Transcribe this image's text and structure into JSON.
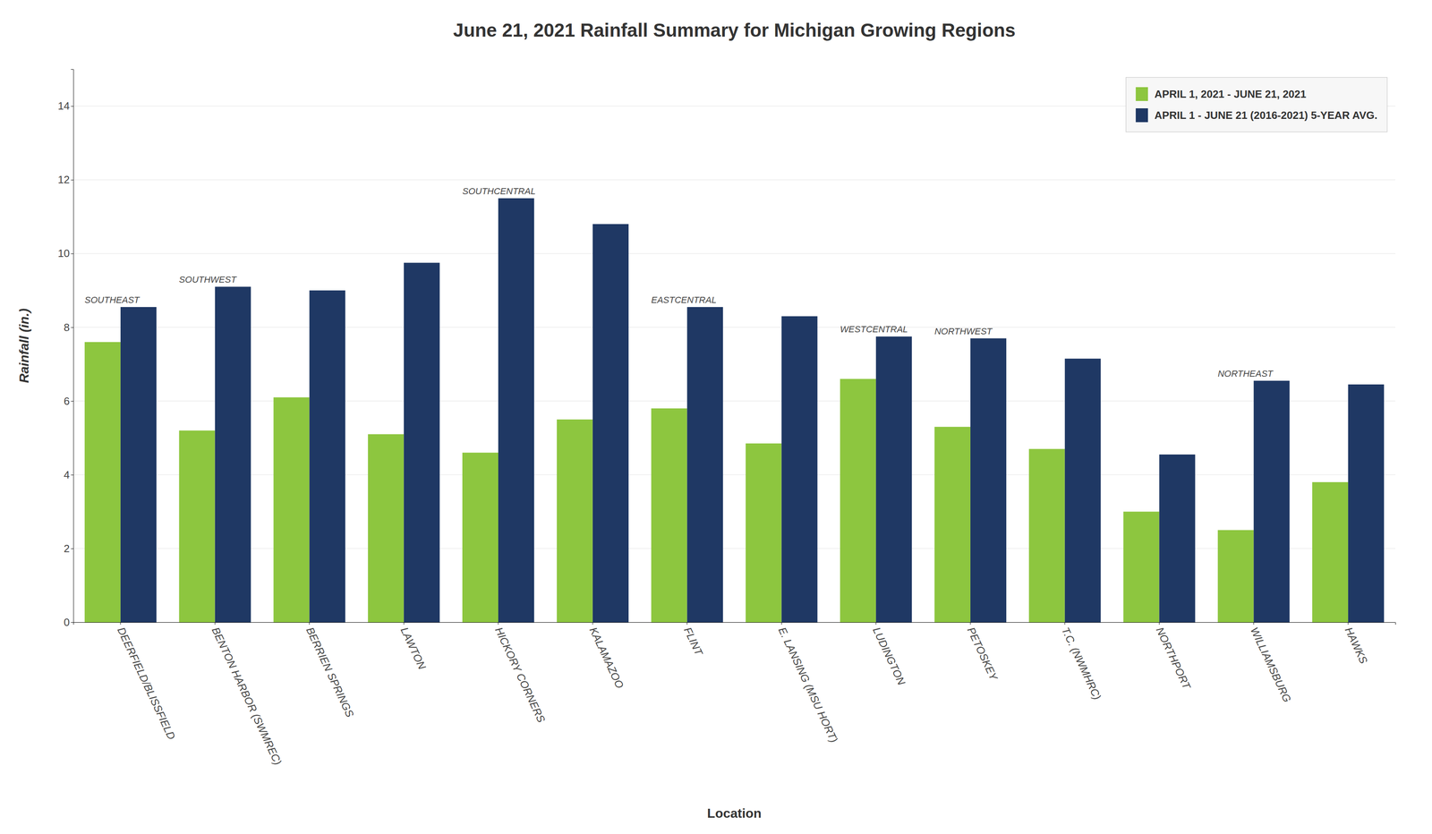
{
  "chart_data": {
    "type": "bar",
    "title": "June 21, 2021 Rainfall Summary for Michigan Growing Regions",
    "xlabel": "Location",
    "ylabel": "Rainfall (in.)",
    "categories": [
      "DEERFIELD/BLISSFIELD",
      "BENTON HARBOR (SWMREC)",
      "BERRIEN SPRINGS",
      "LAWTON",
      "HICKORY CORNERS",
      "KALAMAZOO",
      "FLINT",
      "E. LANSING (MSU HORT)",
      "LUDINGTON",
      "PETOSKEY",
      "T.C. (NWMHRC)",
      "NORTHPORT",
      "WILLIAMSBURG",
      "HAWKS"
    ],
    "series": [
      {
        "name": "APRIL 1, 2021 - JUNE 21, 2021",
        "color": "#8DC63F",
        "values": [
          7.6,
          5.2,
          6.1,
          5.1,
          4.6,
          5.5,
          5.8,
          4.85,
          6.6,
          5.3,
          4.7,
          3.0,
          2.5,
          3.8
        ]
      },
      {
        "name": "APRIL 1 - JUNE 21 (2016-2021) 5-YEAR AVG.",
        "color": "#1F3864",
        "values": [
          8.55,
          9.1,
          9.0,
          9.75,
          11.5,
          10.8,
          8.55,
          8.3,
          7.75,
          7.7,
          7.15,
          4.55,
          6.55,
          6.45
        ]
      }
    ],
    "annotations": [
      {
        "text": "SOUTHEAST",
        "category": "DEERFIELD/BLISSFIELD"
      },
      {
        "text": "SOUTHWEST",
        "category": "BENTON HARBOR (SWMREC)"
      },
      {
        "text": "SOUTHCENTRAL",
        "category": "HICKORY CORNERS"
      },
      {
        "text": "EASTCENTRAL",
        "category": "FLINT"
      },
      {
        "text": "WESTCENTRAL",
        "category": "LUDINGTON"
      },
      {
        "text": "NORTHWEST",
        "category": "PETOSKEY"
      },
      {
        "text": "NORTHEAST",
        "category": "WILLIAMSBURG"
      }
    ],
    "ylim": [
      0,
      15
    ],
    "yticks": [
      0,
      2,
      4,
      6,
      8,
      10,
      12,
      14
    ],
    "grid": true,
    "legend": "top-right"
  }
}
